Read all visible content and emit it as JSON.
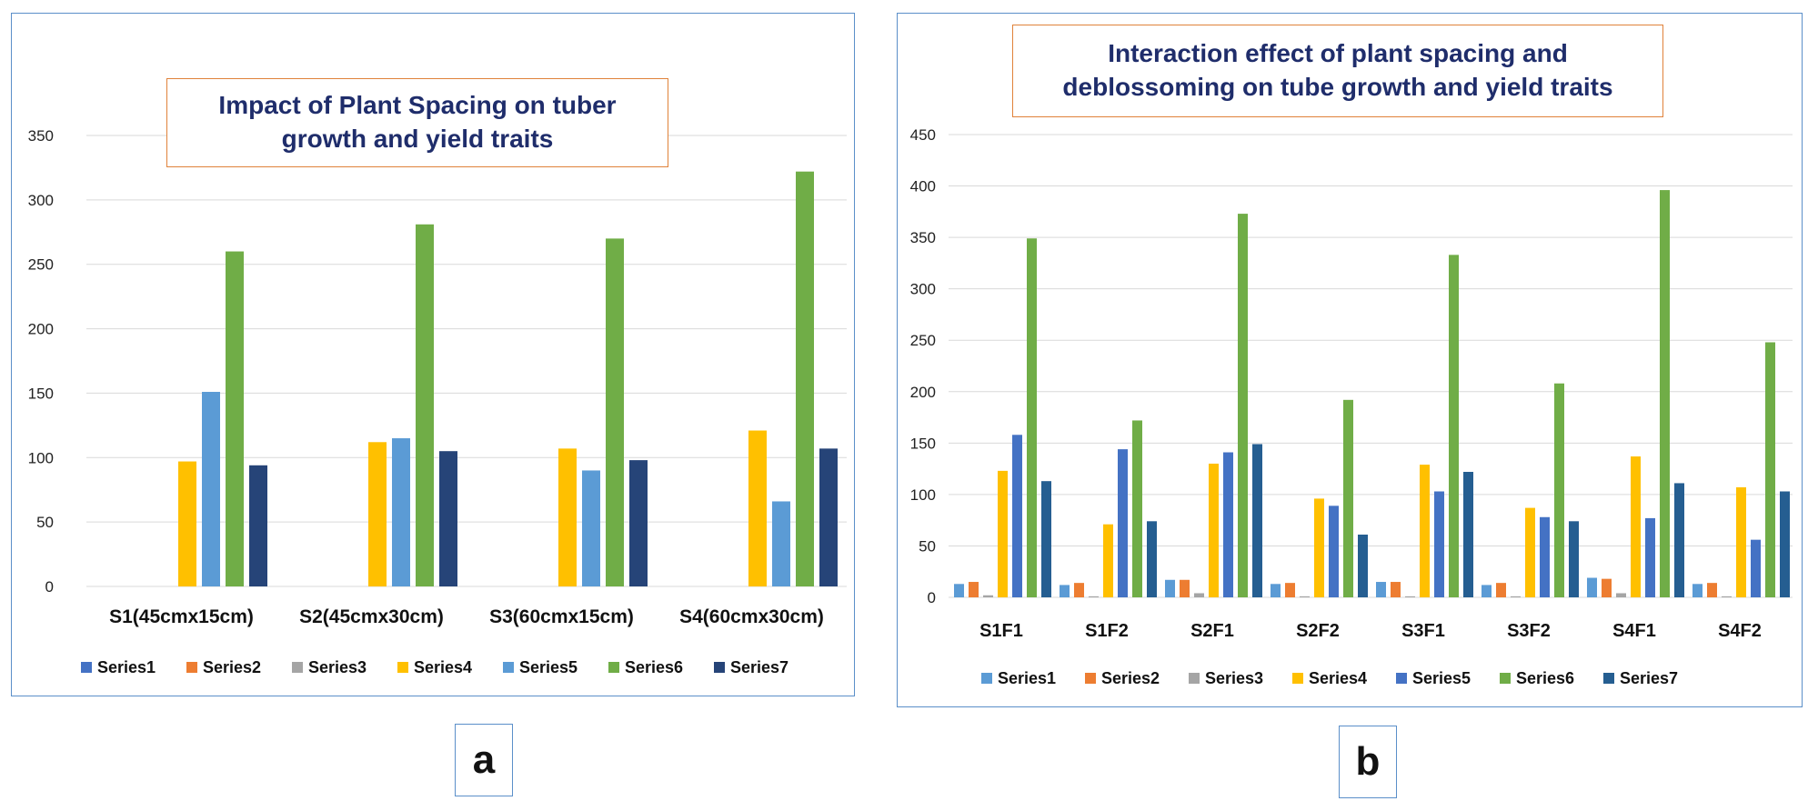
{
  "chart_data": [
    {
      "type": "bar",
      "title": "Impact of Plant Spacing on tuber growth and yield traits",
      "categories": [
        "S1(45cmx15cm)",
        "S2(45cmx30cm)",
        "S3(60cmx15cm)",
        "S4(60cmx30cm)"
      ],
      "ylim": [
        0,
        350
      ],
      "yticks": [
        0,
        50,
        100,
        150,
        200,
        250,
        300,
        350
      ],
      "grid": true,
      "legend": "bottom",
      "series": [
        {
          "name": "Series1",
          "color": "#4472c4",
          "values": [
            0,
            0,
            0,
            0
          ]
        },
        {
          "name": "Series2",
          "color": "#ed7d31",
          "values": [
            0,
            0,
            0,
            0
          ]
        },
        {
          "name": "Series3",
          "color": "#a5a5a5",
          "values": [
            0,
            0,
            0,
            0
          ]
        },
        {
          "name": "Series4",
          "color": "#ffc000",
          "values": [
            97,
            112,
            107,
            121
          ]
        },
        {
          "name": "Series5",
          "color": "#5b9bd5",
          "values": [
            151,
            115,
            90,
            66
          ]
        },
        {
          "name": "Series6",
          "color": "#70ad47",
          "values": [
            260,
            281,
            270,
            322
          ]
        },
        {
          "name": "Series7",
          "color": "#264478",
          "values": [
            94,
            105,
            98,
            107
          ]
        }
      ]
    },
    {
      "type": "bar",
      "title": "Interaction effect of plant spacing and deblossoming on tube growth and yield traits",
      "categories": [
        "S1F1",
        "S1F2",
        "S2F1",
        "S2F2",
        "S3F1",
        "S3F2",
        "S4F1",
        "S4F2"
      ],
      "ylim": [
        0,
        450
      ],
      "yticks": [
        0,
        50,
        100,
        150,
        200,
        250,
        300,
        350,
        400,
        450
      ],
      "grid": true,
      "legend": "bottom",
      "series": [
        {
          "name": "Series1",
          "color": "#5b9bd5",
          "values": [
            13,
            12,
            17,
            13,
            15,
            12,
            19,
            13
          ]
        },
        {
          "name": "Series2",
          "color": "#ed7d31",
          "values": [
            15,
            14,
            17,
            14,
            15,
            14,
            18,
            14
          ]
        },
        {
          "name": "Series3",
          "color": "#a5a5a5",
          "values": [
            2,
            1,
            4,
            1,
            1,
            1,
            4,
            1
          ]
        },
        {
          "name": "Series4",
          "color": "#ffc000",
          "values": [
            123,
            71,
            130,
            96,
            129,
            87,
            137,
            107
          ]
        },
        {
          "name": "Series5",
          "color": "#4472c4",
          "values": [
            158,
            144,
            141,
            89,
            103,
            78,
            77,
            56
          ]
        },
        {
          "name": "Series6",
          "color": "#70ad47",
          "values": [
            349,
            172,
            373,
            192,
            333,
            208,
            396,
            248
          ]
        },
        {
          "name": "Series7",
          "color": "#255e91",
          "values": [
            113,
            74,
            149,
            61,
            122,
            74,
            111,
            103
          ]
        }
      ]
    }
  ],
  "panels": {
    "a": "a",
    "b": "b"
  }
}
